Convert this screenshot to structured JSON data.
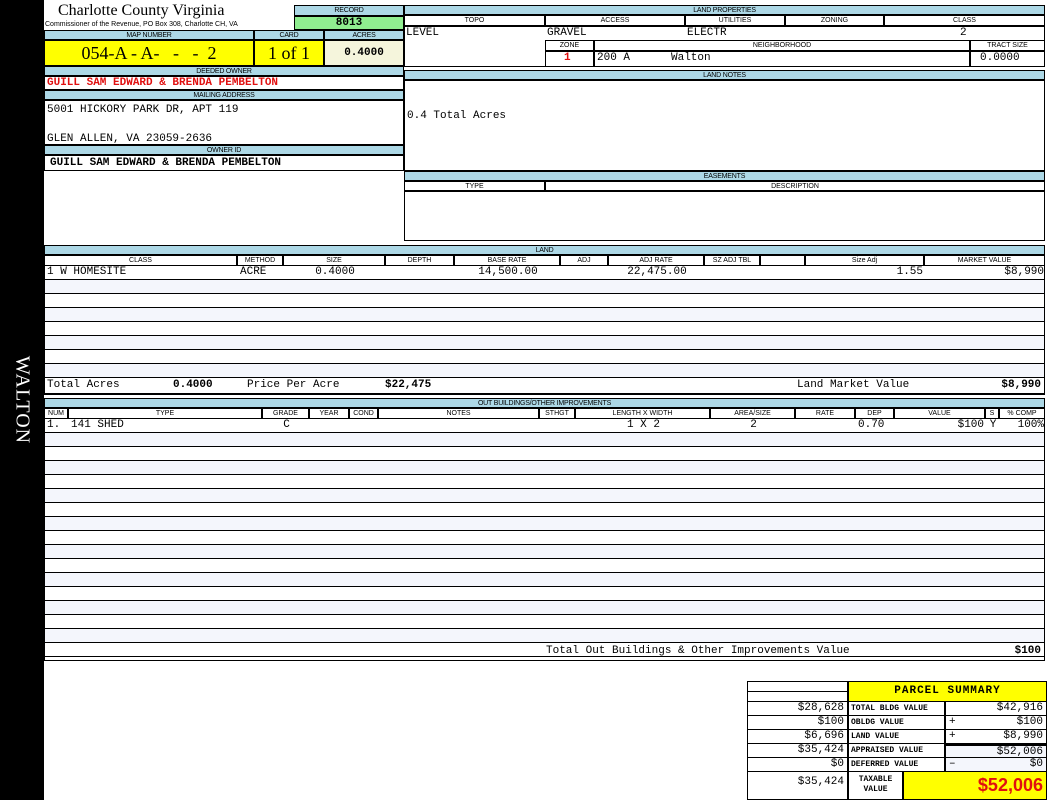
{
  "sidebar": {
    "district": "WALTON"
  },
  "header": {
    "title": "Charlotte County Virginia",
    "subtitle": "Commissioner of the Revenue, PO Box 308, Charlotte CH, VA",
    "record_label": "RECORD",
    "record": "8013",
    "map_number_label": "MAP NUMBER",
    "map_number": "054-A - A-   -   -  2",
    "card_label": "CARD",
    "card": "1 of 1",
    "acres_label": "ACRES",
    "acres": "0.4000"
  },
  "owner": {
    "deeded_label": "DEEDED OWNER",
    "deeded": "GUILL SAM EDWARD & BRENDA PEMBELTON",
    "mailing_label": "MAILING ADDRESS",
    "address1": "5001 HICKORY PARK DR, APT 119",
    "address2": "GLEN ALLEN, VA 23059-2636",
    "owner_id_label": "OWNER ID",
    "owner_id": "GUILL SAM EDWARD & BRENDA PEMBELTON"
  },
  "land_properties": {
    "label": "LAND PROPERTIES",
    "topo_label": "TOPO",
    "access_label": "ACCESS",
    "utilities_label": "UTILITIES",
    "zoning_label": "ZONING",
    "class_label": "CLASS",
    "topo": "LEVEL",
    "access": "GRAVEL",
    "utilities": "ELECTR",
    "zoning": "",
    "class": "2",
    "zone_label": "ZONE",
    "neighborhood_label": "NEIGHBORHOOD",
    "tract_label": "TRACT SIZE",
    "zone": "1",
    "neighborhood_code": "200 A",
    "neighborhood": "Walton",
    "tract_size": "0.0000"
  },
  "land_notes": {
    "label": "LAND NOTES",
    "text": "0.4 Total Acres"
  },
  "easements": {
    "label": "EASEMENTS",
    "type_label": "TYPE",
    "description_label": "DESCRIPTION"
  },
  "land": {
    "label": "LAND",
    "columns": [
      "CLASS",
      "METHOD",
      "SIZE",
      "DEPTH",
      "BASE RATE",
      "ADJ",
      "ADJ RATE",
      "SZ ADJ TBL",
      "",
      "Size Adj",
      "MARKET VALUE"
    ],
    "rows": [
      [
        "1 W HOMESITE",
        "ACRE",
        "0.4000",
        "",
        "14,500.00",
        "",
        "22,475.00",
        "",
        "",
        "1.55",
        "$8,990"
      ]
    ],
    "total_acres_label": "Total Acres",
    "total_acres": "0.4000",
    "price_per_acre_label": "Price Per Acre",
    "price_per_acre": "$22,475",
    "market_value_label": "Land Market Value",
    "market_value": "$8,990"
  },
  "outbuildings": {
    "label": "OUT BUILDINGS/OTHER IMPROVEMENTS",
    "columns": [
      "NUM",
      "TYPE",
      "GRADE",
      "YEAR",
      "COND",
      "NOTES",
      "STHGT",
      "LENGTH X WIDTH",
      "AREA/SIZE",
      "RATE",
      "DEP",
      "VALUE",
      "S",
      "% COMP"
    ],
    "rows": [
      [
        "1.",
        "141 SHED",
        "C",
        "",
        "",
        "",
        "",
        "1 X 2",
        "2",
        "",
        "0.70",
        "$100",
        "Y",
        "100%"
      ]
    ],
    "total_label": "Total Out Buildings & Other Improvements Value",
    "total": "$100"
  },
  "summary": {
    "title": "PARCEL SUMMARY",
    "rows": [
      {
        "left": "$28,628",
        "label": "TOTAL BLDG VALUE",
        "sign": "",
        "value": "$42,916"
      },
      {
        "left": "$100",
        "label": "OBLDG VALUE",
        "sign": "+",
        "value": "$100"
      },
      {
        "left": "$6,696",
        "label": "LAND VALUE",
        "sign": "+",
        "value": "$8,990"
      },
      {
        "left": "$35,424",
        "label": "APPRAISED VALUE",
        "sign": "",
        "value": "$52,006"
      },
      {
        "left": "$0",
        "label": "DEFERRED VALUE",
        "sign": "–",
        "value": "$0"
      }
    ],
    "taxable_left": "$35,424",
    "taxable_label": "TAXABLE VALUE",
    "taxable": "$52,006"
  },
  "colors": {
    "header_blue": "#add8e6",
    "highlight_yellow": "#ffff00",
    "record_green": "#90ee90",
    "owner_red": "#e01010"
  }
}
